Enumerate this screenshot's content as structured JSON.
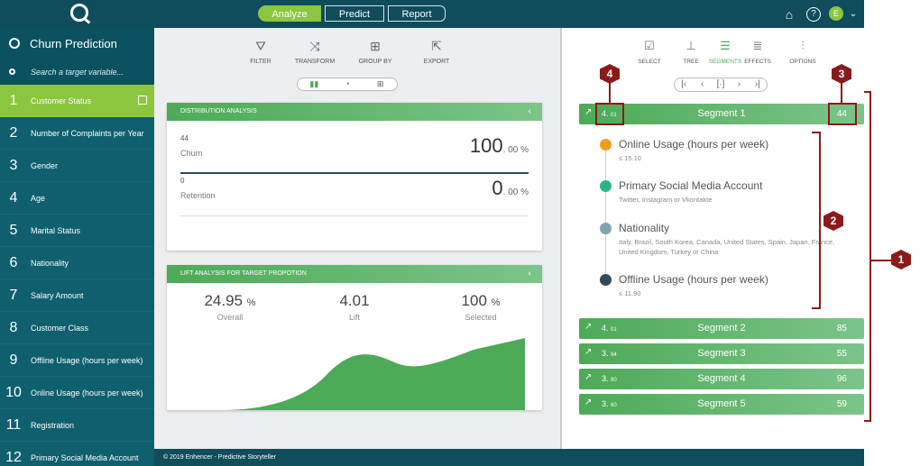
{
  "app": {
    "logo": "Q",
    "steps": [
      "Analyze",
      "Predict",
      "Report"
    ],
    "user_initial": "E"
  },
  "sidebar": {
    "title": "Churn Prediction",
    "search_placeholder": "Search a target variable...",
    "items": [
      {
        "num": "1",
        "label": "Customer Status"
      },
      {
        "num": "2",
        "label": "Number of Complaints per Year"
      },
      {
        "num": "3",
        "label": "Gender"
      },
      {
        "num": "4",
        "label": "Age"
      },
      {
        "num": "5",
        "label": "Marital Status"
      },
      {
        "num": "6",
        "label": "Nationality"
      },
      {
        "num": "7",
        "label": "Salary Amount"
      },
      {
        "num": "8",
        "label": "Customer Class"
      },
      {
        "num": "9",
        "label": "Offline Usage (hours per week)"
      },
      {
        "num": "10",
        "label": "Online Usage (hours per week)"
      },
      {
        "num": "11",
        "label": "Registration"
      },
      {
        "num": "12",
        "label": "Primary Social Media Account"
      }
    ]
  },
  "toolbar": {
    "filter": "FILTER",
    "transform": "TRANSFORM",
    "group_by": "GROUP BY",
    "export": "EXPORT"
  },
  "distribution": {
    "title": "DISTRIBUTION ANALYSIS",
    "rows": [
      {
        "count": "44",
        "label": "Churn",
        "pct_int": "100",
        "pct_dec": ". 00 %"
      },
      {
        "count": "0",
        "label": "Retention",
        "pct_int": "0",
        "pct_dec": ". 00 %"
      }
    ]
  },
  "lift": {
    "title": "LIFT ANALYSIS FOR TARGET PROPOTION",
    "overall": "24.95",
    "overall_unit": "%",
    "overall_label": "Overall",
    "lift": "4.01",
    "lift_label": "Lift",
    "selected": "100",
    "selected_unit": "%",
    "selected_label": "Selected"
  },
  "footer": "© 2019 Enhencer -  Predictive Storyteller",
  "right_toolbar": {
    "select": "SELECT",
    "tree": "TREE",
    "segments": "SEGMENTS",
    "effects": "EFFECTS",
    "options": "OPTIONS"
  },
  "segments": [
    {
      "lift_int": "4.",
      "lift_dec": "01",
      "name": "Segment 1",
      "count": "44"
    },
    {
      "lift_int": "4.",
      "lift_dec": "01",
      "name": "Segment 2",
      "count": "85"
    },
    {
      "lift_int": "3.",
      "lift_dec": "94",
      "name": "Segment 3",
      "count": "55"
    },
    {
      "lift_int": "3.",
      "lift_dec": "80",
      "name": "Segment 4",
      "count": "96"
    },
    {
      "lift_int": "3.",
      "lift_dec": "60",
      "name": "Segment 5",
      "count": "59"
    }
  ],
  "conditions": [
    {
      "title": "Online Usage (hours per week)",
      "sub": "≤ 15.10",
      "color": "#f39c1f"
    },
    {
      "title": "Primary Social Media Account",
      "sub": "Twitter, Instagram or Vkontakte",
      "color": "#2db38a"
    },
    {
      "title": "Nationality",
      "sub": "Italy, Brazil, South Korea, Canada, United States, Spain, Japan, France, United Kingdom, Turkey or China",
      "color": "#7fa4b3"
    },
    {
      "title": "Offline Usage (hours per week)",
      "sub": "≤ 11.90",
      "color": "#2e4a5c"
    }
  ],
  "annotations": [
    "1",
    "2",
    "3",
    "4"
  ],
  "colors": {
    "accent": "#8cc63f",
    "header": "#0f4c5c",
    "sidebar": "#0f5f6f",
    "green": "#4daa57",
    "annotation": "#8b1a1a"
  }
}
